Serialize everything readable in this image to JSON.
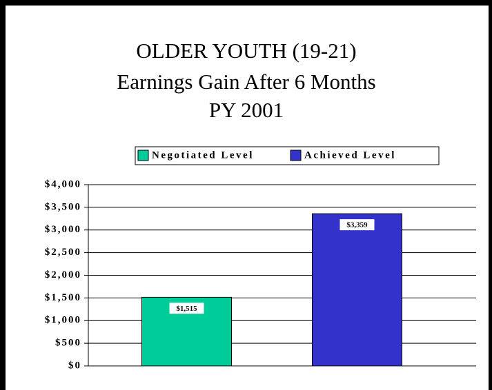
{
  "chart_data": {
    "type": "bar",
    "title": [
      "OLDER YOUTH (19-21)",
      "Earnings Gain After 6 Months",
      "PY 2001"
    ],
    "categories": [
      null
    ],
    "series": [
      {
        "name": "Negotiated Level",
        "color": "#00cc99",
        "values": [
          1515
        ],
        "value_labels": [
          "$1,515"
        ]
      },
      {
        "name": "Achieved Level",
        "color": "#3333cc",
        "values": [
          3359
        ],
        "value_labels": [
          "$3,359"
        ]
      }
    ],
    "ylim": [
      0,
      4000
    ],
    "yticks": [
      {
        "value": 0,
        "label": "$0"
      },
      {
        "value": 500,
        "label": "$500"
      },
      {
        "value": 1000,
        "label": "$1,000"
      },
      {
        "value": 1500,
        "label": "$1,500"
      },
      {
        "value": 2000,
        "label": "$2,000"
      },
      {
        "value": 2500,
        "label": "$2,500"
      },
      {
        "value": 3000,
        "label": "$3,000"
      },
      {
        "value": 3500,
        "label": "$3,500"
      },
      {
        "value": 4000,
        "label": "$4,000"
      }
    ],
    "grid": true,
    "legend": "top"
  }
}
